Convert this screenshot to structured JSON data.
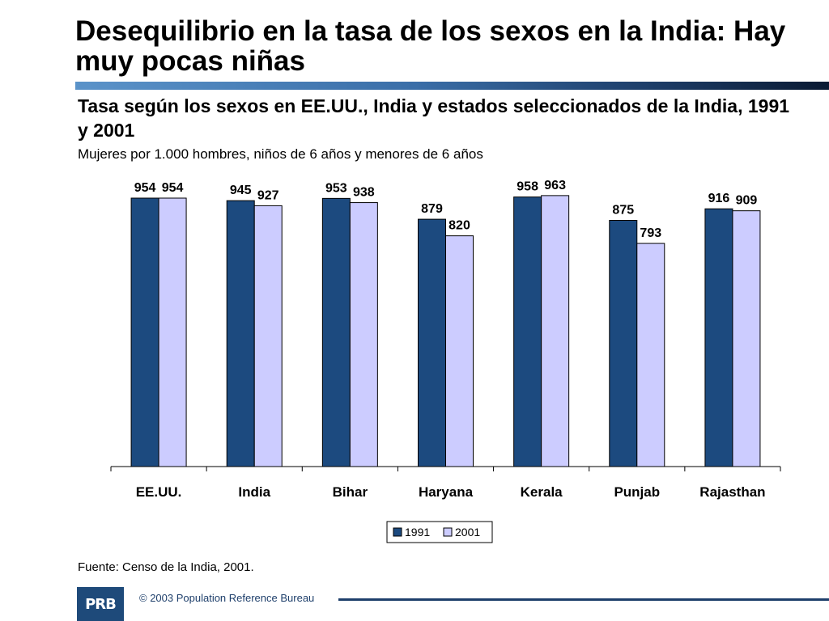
{
  "slide": {
    "title": "Desequilibrio en la tasa de los sexos en la India: Hay muy pocas niñas",
    "subtitle": "Tasa según los sexos en EE.UU., India y estados seleccionados de la India, 1991 y 2001",
    "units": "Mujeres por 1.000 hombres, niños de 6 años y menores de 6 años",
    "source": "Fuente: Censo de la India, 2001.",
    "copyright": "© 2003 Population Reference Bureau",
    "logo_text": "PRB"
  },
  "colors": {
    "series_1991": "#1c4a7f",
    "series_2001": "#ccccff",
    "axis": "#000000"
  },
  "chart_data": {
    "type": "bar",
    "title": "Tasa según los sexos en EE.UU., India y estados seleccionados de la India, 1991 y 2001",
    "ylabel": "Mujeres por 1.000 hombres, niños de 6 años y menores de 6 años",
    "xlabel": "",
    "ylim": [
      0,
      1000
    ],
    "categories": [
      "EE.UU.",
      "India",
      "Bihar",
      "Haryana",
      "Kerala",
      "Punjab",
      "Rajasthan"
    ],
    "series": [
      {
        "name": "1991",
        "values": [
          954,
          945,
          953,
          879,
          958,
          875,
          916
        ]
      },
      {
        "name": "2001",
        "values": [
          954,
          927,
          938,
          820,
          963,
          793,
          909
        ]
      }
    ],
    "legend": "bottom-center",
    "grid": false
  }
}
